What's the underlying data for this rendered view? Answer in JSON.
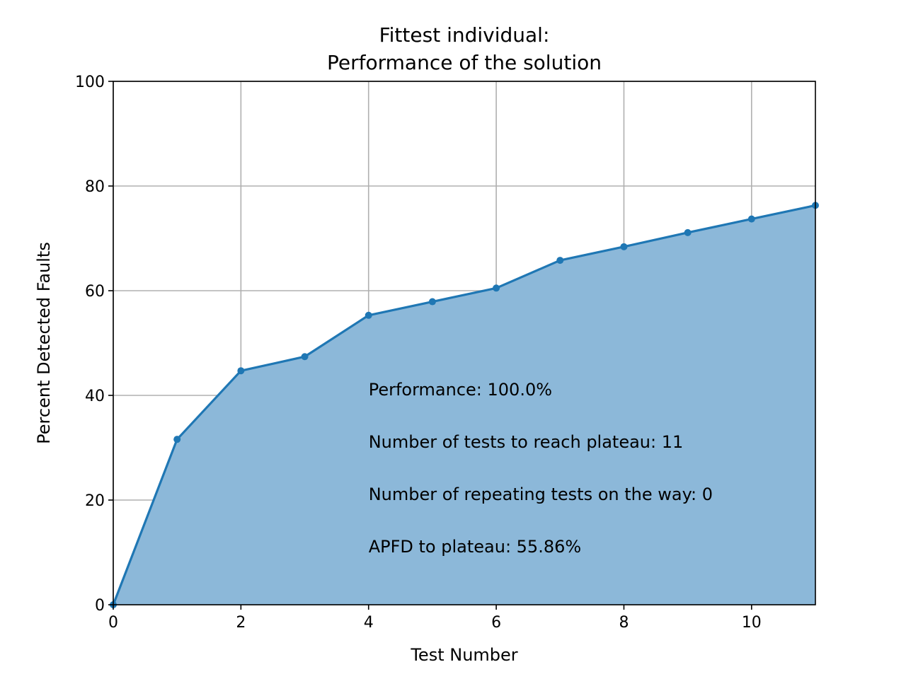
{
  "chart_data": {
    "type": "area",
    "title": [
      "Fittest individual:",
      "Performance of the solution"
    ],
    "xlabel": "Test Number",
    "ylabel": "Percent Detected Faults",
    "xlim": [
      0,
      11
    ],
    "ylim": [
      0,
      100
    ],
    "xticks": [
      0,
      2,
      4,
      6,
      8,
      10
    ],
    "yticks": [
      0,
      20,
      40,
      60,
      80,
      100
    ],
    "grid": true,
    "series": [
      {
        "x": [
          0,
          1,
          2,
          3,
          4,
          5,
          6,
          7,
          8,
          9,
          10,
          11
        ],
        "values": [
          0,
          31.6,
          44.7,
          47.4,
          55.3,
          57.9,
          60.5,
          65.8,
          68.4,
          71.1,
          73.7,
          76.3
        ],
        "color": "#1f77b4",
        "fill_color": "#8cb8d9"
      }
    ],
    "annotations": [
      {
        "text": "Performance: 100.0%",
        "x": 4,
        "y": 40
      },
      {
        "text": "Number of tests to reach plateau: 11",
        "x": 4,
        "y": 30
      },
      {
        "text": "Number of repeating tests on the way: 0",
        "x": 4,
        "y": 20
      },
      {
        "text": "APFD to plateau: 55.86%",
        "x": 4,
        "y": 10
      }
    ]
  }
}
